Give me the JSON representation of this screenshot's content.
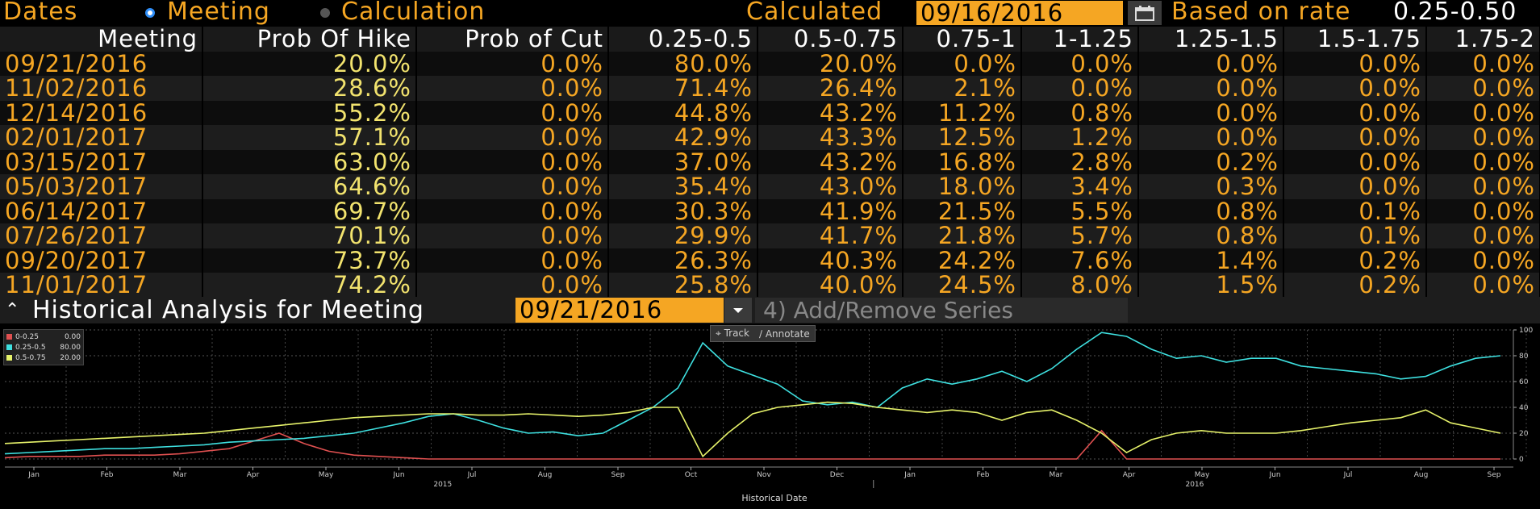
{
  "header": {
    "dates_label": "Dates",
    "meeting_label": "Meeting",
    "calculation_label": "Calculation",
    "calculated_label": "Calculated",
    "calculated_date": "09/16/2016",
    "based_on_label": "Based on rate",
    "based_on_value": "0.25-0.50"
  },
  "table": {
    "columns": [
      "Meeting",
      "Prob Of Hike",
      "Prob of Cut",
      "0.25-0.5",
      "0.5-0.75",
      "0.75-1",
      "1-1.25",
      "1.25-1.5",
      "1.5-1.75",
      "1.75-2"
    ],
    "rows": [
      [
        "09/21/2016",
        "20.0%",
        "0.0%",
        "80.0%",
        "20.0%",
        "0.0%",
        "0.0%",
        "0.0%",
        "0.0%",
        "0.0%"
      ],
      [
        "11/02/2016",
        "28.6%",
        "0.0%",
        "71.4%",
        "26.4%",
        "2.1%",
        "0.0%",
        "0.0%",
        "0.0%",
        "0.0%"
      ],
      [
        "12/14/2016",
        "55.2%",
        "0.0%",
        "44.8%",
        "43.2%",
        "11.2%",
        "0.8%",
        "0.0%",
        "0.0%",
        "0.0%"
      ],
      [
        "02/01/2017",
        "57.1%",
        "0.0%",
        "42.9%",
        "43.3%",
        "12.5%",
        "1.2%",
        "0.0%",
        "0.0%",
        "0.0%"
      ],
      [
        "03/15/2017",
        "63.0%",
        "0.0%",
        "37.0%",
        "43.2%",
        "16.8%",
        "2.8%",
        "0.2%",
        "0.0%",
        "0.0%"
      ],
      [
        "05/03/2017",
        "64.6%",
        "0.0%",
        "35.4%",
        "43.0%",
        "18.0%",
        "3.4%",
        "0.3%",
        "0.0%",
        "0.0%"
      ],
      [
        "06/14/2017",
        "69.7%",
        "0.0%",
        "30.3%",
        "41.9%",
        "21.5%",
        "5.5%",
        "0.8%",
        "0.1%",
        "0.0%"
      ],
      [
        "07/26/2017",
        "70.1%",
        "0.0%",
        "29.9%",
        "41.7%",
        "21.8%",
        "5.7%",
        "0.8%",
        "0.1%",
        "0.0%"
      ],
      [
        "09/20/2017",
        "73.7%",
        "0.0%",
        "26.3%",
        "40.3%",
        "24.2%",
        "7.6%",
        "1.4%",
        "0.2%",
        "0.0%"
      ],
      [
        "11/01/2017",
        "74.2%",
        "0.0%",
        "25.8%",
        "40.0%",
        "24.5%",
        "8.0%",
        "1.5%",
        "0.2%",
        "0.0%"
      ]
    ]
  },
  "historical": {
    "label": "Historical Analysis for Meeting",
    "meeting_date": "09/21/2016",
    "add_remove_label": "4) Add/Remove Series",
    "track_label": "Track",
    "annotate_label": "Annotate"
  },
  "chart_data": {
    "type": "line",
    "xlabel": "Historical Date",
    "x_ticks": [
      "Jan",
      "Feb",
      "Mar",
      "Apr",
      "May",
      "Jun",
      "Jul",
      "Aug",
      "Sep",
      "Oct",
      "Nov",
      "Dec",
      "Jan",
      "Feb",
      "Mar",
      "Apr",
      "May",
      "Jun",
      "Jul",
      "Aug",
      "Sep"
    ],
    "year_labels": [
      "2015",
      "2016"
    ],
    "y_ticks": [
      "0",
      "20",
      "40",
      "60",
      "80",
      "100"
    ],
    "ylim": [
      0,
      100
    ],
    "legend": [
      {
        "name": "0-0.25",
        "value": "0.00",
        "color": "#e05050"
      },
      {
        "name": "0.25-0.5",
        "value": "80.00",
        "color": "#3ee0e0"
      },
      {
        "name": "0.5-0.75",
        "value": "20.00",
        "color": "#e6f26a"
      }
    ],
    "series": [
      {
        "name": "0-0.25",
        "color": "#e05050",
        "values": [
          1,
          2,
          2,
          2,
          3,
          3,
          3,
          4,
          6,
          8,
          14,
          20,
          12,
          6,
          3,
          2,
          1,
          0,
          0,
          0,
          0,
          0,
          0,
          0,
          0,
          0,
          0,
          0,
          0,
          0,
          0,
          0,
          0,
          0,
          0,
          0,
          0,
          0,
          0,
          0,
          0,
          0,
          0,
          0,
          22,
          0,
          0,
          0,
          0,
          0,
          0,
          0,
          0,
          0,
          0,
          0,
          0,
          0,
          0,
          0,
          0
        ]
      },
      {
        "name": "0.25-0.5",
        "color": "#3ee0e0",
        "values": [
          4,
          5,
          6,
          7,
          8,
          8,
          9,
          10,
          11,
          13,
          14,
          15,
          16,
          18,
          20,
          24,
          28,
          33,
          35,
          30,
          24,
          20,
          21,
          18,
          20,
          30,
          40,
          55,
          90,
          72,
          65,
          58,
          45,
          42,
          44,
          40,
          55,
          62,
          58,
          62,
          68,
          60,
          70,
          85,
          98,
          95,
          85,
          78,
          80,
          75,
          78,
          78,
          72,
          70,
          68,
          66,
          62,
          64,
          72,
          78,
          80
        ]
      },
      {
        "name": "0.5-0.75",
        "color": "#e6f26a",
        "values": [
          12,
          13,
          14,
          15,
          16,
          17,
          18,
          19,
          20,
          22,
          24,
          26,
          28,
          30,
          32,
          33,
          34,
          35,
          35,
          34,
          34,
          35,
          34,
          33,
          34,
          36,
          40,
          40,
          2,
          20,
          35,
          40,
          42,
          44,
          43,
          40,
          38,
          36,
          38,
          36,
          30,
          36,
          38,
          30,
          20,
          5,
          15,
          20,
          22,
          20,
          20,
          20,
          22,
          25,
          28,
          30,
          32,
          38,
          28,
          24,
          20
        ]
      }
    ]
  }
}
